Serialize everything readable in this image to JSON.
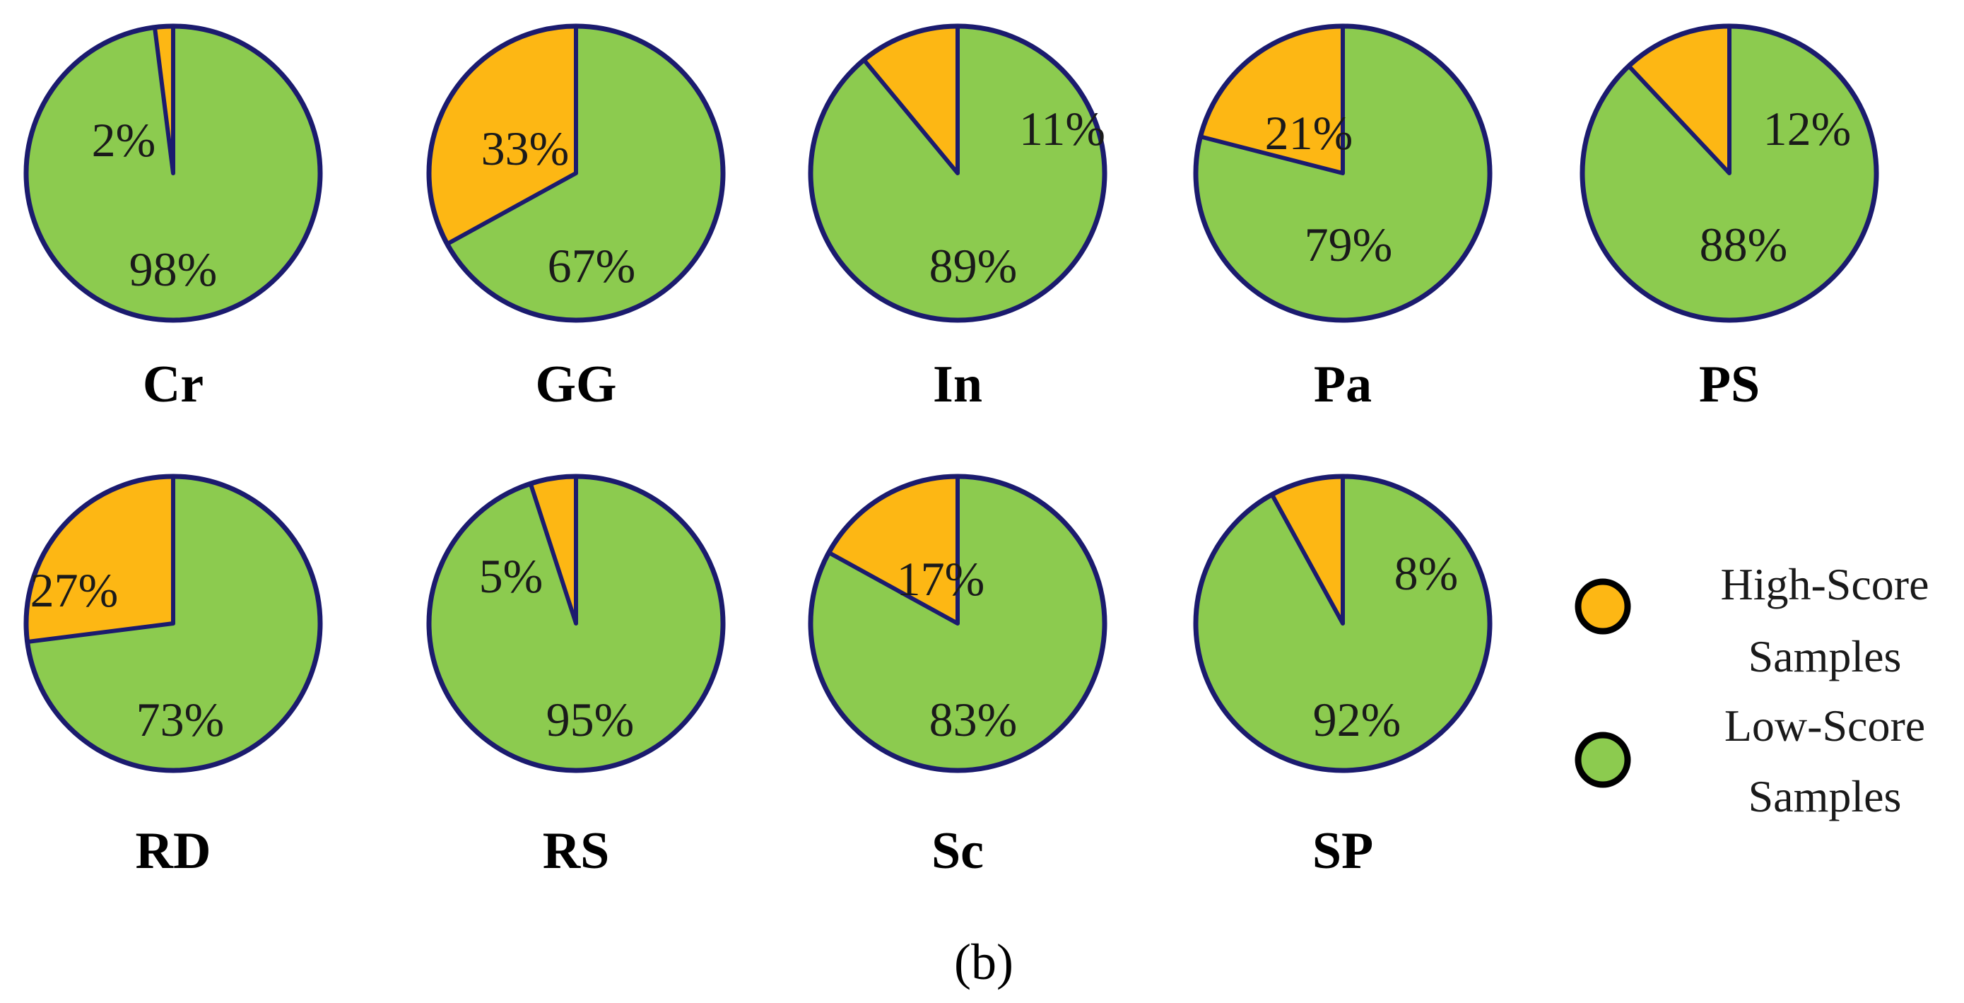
{
  "colors": {
    "high": "#FDB714",
    "low": "#8CCB4F",
    "outline": "#1B1B6E"
  },
  "chart_data": [
    {
      "type": "pie",
      "title": "Cr",
      "slices": [
        {
          "name": "High-Score Samples",
          "value": 2,
          "label": "2%"
        },
        {
          "name": "Low-Score Samples",
          "value": 98,
          "label": "98%"
        }
      ]
    },
    {
      "type": "pie",
      "title": "GG",
      "slices": [
        {
          "name": "High-Score Samples",
          "value": 33,
          "label": "33%"
        },
        {
          "name": "Low-Score Samples",
          "value": 67,
          "label": "67%"
        }
      ]
    },
    {
      "type": "pie",
      "title": "In",
      "slices": [
        {
          "name": "High-Score Samples",
          "value": 11,
          "label": "11%"
        },
        {
          "name": "Low-Score Samples",
          "value": 89,
          "label": "89%"
        }
      ]
    },
    {
      "type": "pie",
      "title": "Pa",
      "slices": [
        {
          "name": "High-Score Samples",
          "value": 21,
          "label": "21%"
        },
        {
          "name": "Low-Score Samples",
          "value": 79,
          "label": "79%"
        }
      ]
    },
    {
      "type": "pie",
      "title": "PS",
      "slices": [
        {
          "name": "High-Score Samples",
          "value": 12,
          "label": "12%"
        },
        {
          "name": "Low-Score Samples",
          "value": 88,
          "label": "88%"
        }
      ]
    },
    {
      "type": "pie",
      "title": "RD",
      "slices": [
        {
          "name": "High-Score Samples",
          "value": 27,
          "label": "27%"
        },
        {
          "name": "Low-Score Samples",
          "value": 73,
          "label": "73%"
        }
      ]
    },
    {
      "type": "pie",
      "title": "RS",
      "slices": [
        {
          "name": "High-Score Samples",
          "value": 5,
          "label": "5%"
        },
        {
          "name": "Low-Score Samples",
          "value": 95,
          "label": "95%"
        }
      ]
    },
    {
      "type": "pie",
      "title": "Sc",
      "slices": [
        {
          "name": "High-Score Samples",
          "value": 17,
          "label": "17%"
        },
        {
          "name": "Low-Score Samples",
          "value": 83,
          "label": "83%"
        }
      ]
    },
    {
      "type": "pie",
      "title": "SP",
      "slices": [
        {
          "name": "High-Score Samples",
          "value": 8,
          "label": "8%"
        },
        {
          "name": "Low-Score Samples",
          "value": 92,
          "label": "92%"
        }
      ]
    }
  ],
  "legend": {
    "placement": "right",
    "entries": [
      {
        "line1": "High-Score",
        "line2": "Samples",
        "series": "high"
      },
      {
        "line1": "Low-Score",
        "line2": "Samples",
        "series": "low"
      }
    ]
  },
  "panel_label": "(b)"
}
